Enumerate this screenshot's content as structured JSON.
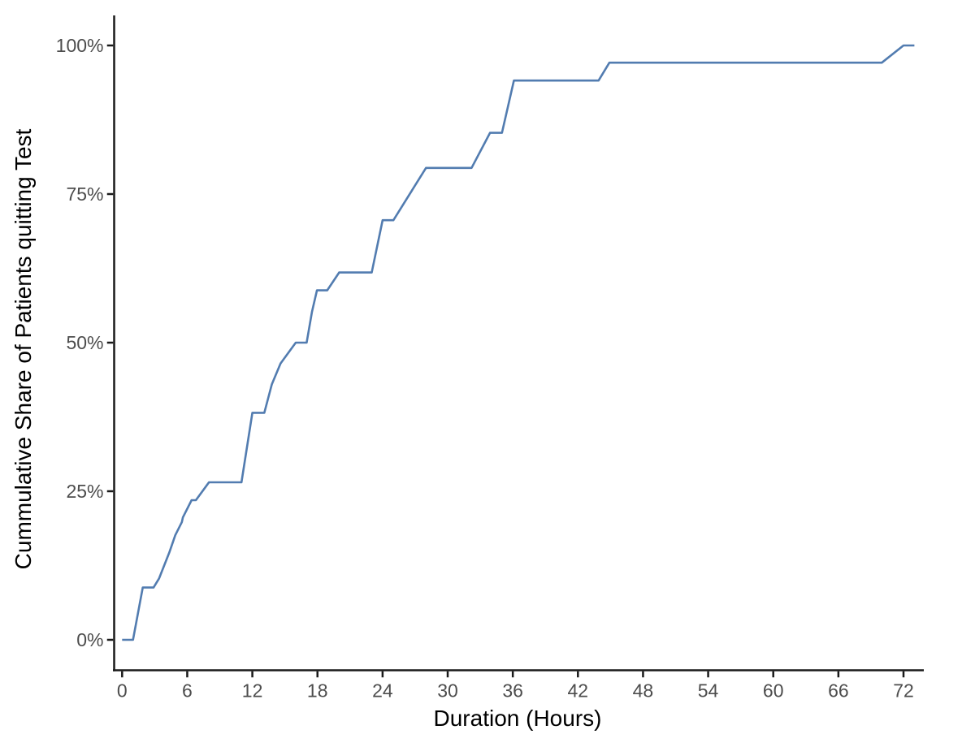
{
  "chart_data": {
    "type": "line",
    "title": "",
    "xlabel": "Duration (Hours)",
    "ylabel": "Cummulative Share of Patients quitting Test",
    "x_ticks": [
      0,
      6,
      12,
      18,
      24,
      30,
      36,
      42,
      48,
      54,
      60,
      66,
      72
    ],
    "y_ticks": [
      {
        "value": 0,
        "label": "0%"
      },
      {
        "value": 25,
        "label": "25%"
      },
      {
        "value": 50,
        "label": "50%"
      },
      {
        "value": 75,
        "label": "75%"
      },
      {
        "value": 100,
        "label": "100%"
      }
    ],
    "xlim": [
      0,
      72
    ],
    "ylim": [
      0,
      100
    ],
    "grid": "off",
    "legend": "none",
    "series": [
      {
        "name": "cumulative-share-of-patients-quitting",
        "points": [
          [
            0,
            0
          ],
          [
            1,
            0
          ],
          [
            1.9,
            8.8
          ],
          [
            2.9,
            8.8
          ],
          [
            3.4,
            10.3
          ],
          [
            4.35,
            14.7
          ],
          [
            4.9,
            17.6
          ],
          [
            5.5,
            19.8
          ],
          [
            5.6,
            20.6
          ],
          [
            6.4,
            23.5
          ],
          [
            6.8,
            23.5
          ],
          [
            8,
            26.5
          ],
          [
            11,
            26.5
          ],
          [
            12,
            38.2
          ],
          [
            13.1,
            38.2
          ],
          [
            13.8,
            43.0
          ],
          [
            14.6,
            46.5
          ],
          [
            16,
            50
          ],
          [
            17,
            50
          ],
          [
            17.5,
            55.2
          ],
          [
            17.95,
            58.8
          ],
          [
            18.9,
            58.8
          ],
          [
            20,
            61.8
          ],
          [
            23,
            61.8
          ],
          [
            24,
            70.6
          ],
          [
            25,
            70.6
          ],
          [
            28,
            79.4
          ],
          [
            32.2,
            79.4
          ],
          [
            33.9,
            85.3
          ],
          [
            35,
            85.3
          ],
          [
            36.1,
            94.1
          ],
          [
            43.9,
            94.1
          ],
          [
            44.9,
            97.1
          ],
          [
            70,
            97.1
          ],
          [
            72,
            100
          ],
          [
            73,
            100
          ]
        ]
      }
    ],
    "colors": {
      "line": "#527cb0",
      "axis": "#1a1a1a",
      "tick_label": "#4d4d4d",
      "axis_title": "#000000",
      "background": "#ffffff"
    }
  }
}
